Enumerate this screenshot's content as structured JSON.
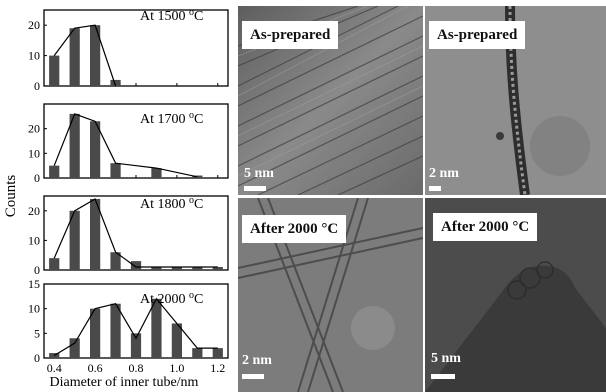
{
  "chart_data": [
    {
      "type": "bar",
      "annotation": "At 1500 °C",
      "x": [
        0.4,
        0.5,
        0.6,
        0.7
      ],
      "values": [
        10,
        19,
        20,
        2
      ],
      "curve": [
        [
          0.4,
          10
        ],
        [
          0.5,
          19
        ],
        [
          0.6,
          20
        ],
        [
          0.7,
          0
        ]
      ],
      "ylim": [
        0,
        25
      ],
      "yticks": [
        0,
        10,
        20
      ],
      "xlim": [
        0.35,
        1.25
      ]
    },
    {
      "type": "bar",
      "annotation": "At 1700 °C",
      "x": [
        0.4,
        0.5,
        0.6,
        0.7,
        0.8,
        0.9,
        1.0,
        1.1
      ],
      "values": [
        5,
        26,
        23,
        6,
        0,
        4,
        0,
        1
      ],
      "curve": [
        [
          0.4,
          5
        ],
        [
          0.5,
          26
        ],
        [
          0.6,
          23
        ],
        [
          0.7,
          6
        ],
        [
          0.9,
          4
        ],
        [
          1.1,
          0.5
        ]
      ],
      "ylim": [
        0,
        30
      ],
      "yticks": [
        0,
        10,
        20
      ],
      "xlim": [
        0.35,
        1.25
      ]
    },
    {
      "type": "bar",
      "annotation": "At 1800 °C",
      "x": [
        0.4,
        0.5,
        0.6,
        0.7,
        0.8,
        0.9,
        1.0,
        1.1,
        1.2
      ],
      "values": [
        4,
        20,
        24,
        6,
        3,
        1,
        1,
        1,
        1
      ],
      "curve": [
        [
          0.4,
          4
        ],
        [
          0.5,
          20
        ],
        [
          0.6,
          24
        ],
        [
          0.7,
          6
        ],
        [
          0.8,
          1
        ],
        [
          1.2,
          1
        ]
      ],
      "ylim": [
        0,
        25
      ],
      "yticks": [
        0,
        10,
        20
      ],
      "xlim": [
        0.35,
        1.25
      ]
    },
    {
      "type": "bar",
      "annotation": "At 2000 °C",
      "x": [
        0.4,
        0.5,
        0.6,
        0.7,
        0.8,
        0.9,
        1.0,
        1.1,
        1.2
      ],
      "values": [
        1,
        4,
        10,
        11,
        5,
        12,
        7,
        2,
        2
      ],
      "curve": [
        [
          0.4,
          0.5
        ],
        [
          0.5,
          3
        ],
        [
          0.6,
          10
        ],
        [
          0.7,
          11
        ],
        [
          0.8,
          4
        ],
        [
          0.9,
          12
        ],
        [
          1.0,
          7
        ],
        [
          1.1,
          2
        ],
        [
          1.2,
          2
        ]
      ],
      "ylim": [
        0,
        15
      ],
      "yticks": [
        0,
        5,
        10,
        15
      ],
      "xlim": [
        0.35,
        1.25
      ],
      "xticks": [
        "0.4",
        "0.6",
        "0.8",
        "1.0",
        "1.2"
      ]
    }
  ],
  "axes": {
    "ylabel": "Counts",
    "xlabel": "Diameter of inner tube/nm"
  },
  "colors": {
    "bar_fill": "#4a4a4a",
    "axis": "#000000"
  },
  "tem_images": [
    {
      "label": "As-prepared",
      "scale": "5 nm"
    },
    {
      "label": "As-prepared",
      "scale": "2 nm"
    },
    {
      "label": "After 2000 °C",
      "scale": "2 nm"
    },
    {
      "label": "After 2000 °C",
      "scale": "5 nm"
    }
  ]
}
